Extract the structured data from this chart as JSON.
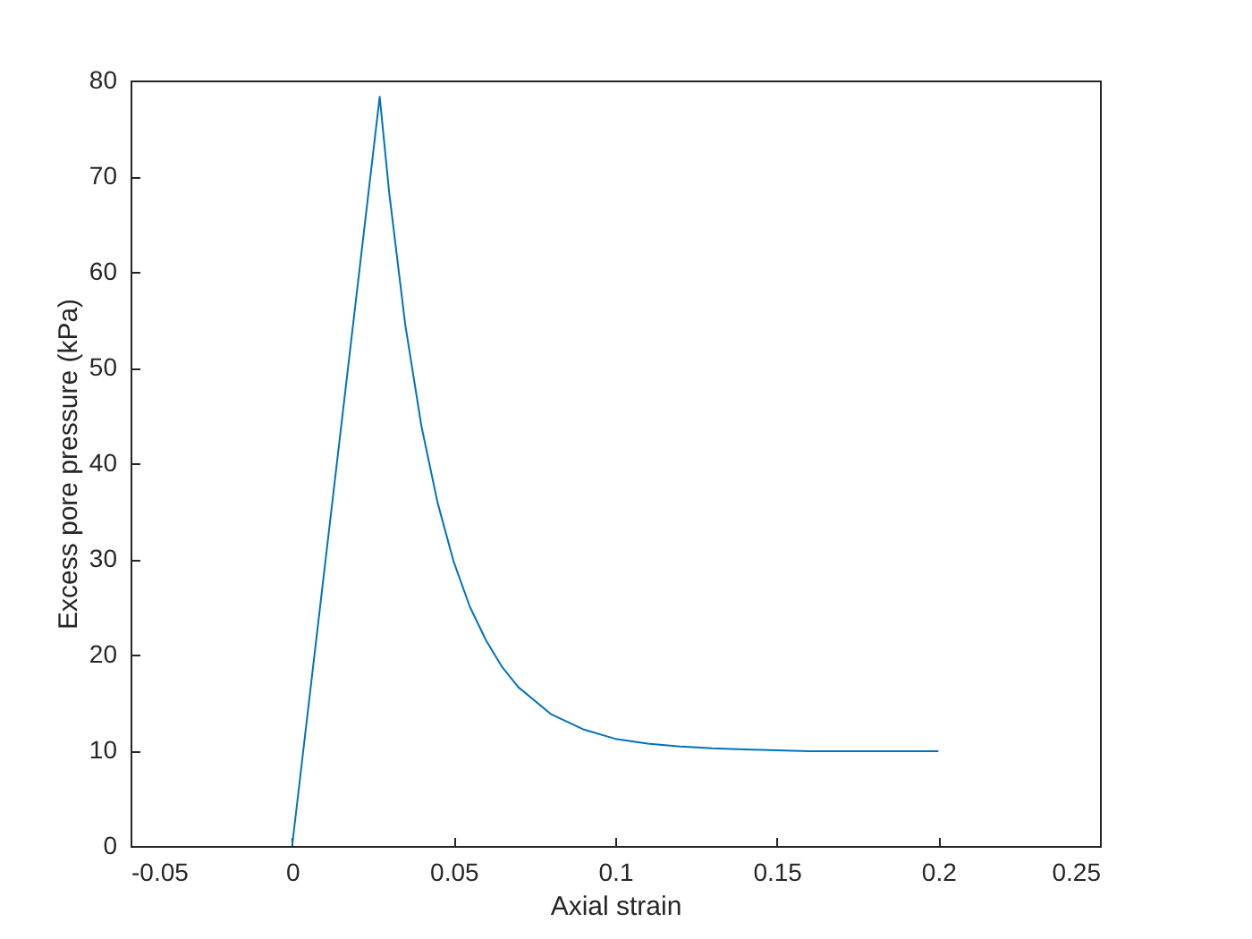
{
  "chart_data": {
    "type": "line",
    "xlabel": "Axial strain",
    "ylabel": "Excess pore pressure (kPa)",
    "x": [
      0,
      0.0271,
      0.03,
      0.035,
      0.04,
      0.045,
      0.05,
      0.055,
      0.06,
      0.065,
      0.07,
      0.08,
      0.09,
      0.1,
      0.11,
      0.12,
      0.13,
      0.14,
      0.16,
      0.2
    ],
    "series": [
      {
        "color": "#0072bd",
        "values": [
          0,
          78.3,
          68.4,
          54.5,
          43.9,
          35.9,
          29.7,
          25.0,
          21.5,
          18.7,
          16.6,
          13.8,
          12.2,
          11.2,
          10.7,
          10.4,
          10.2,
          10.1,
          9.9,
          9.9
        ]
      }
    ],
    "xlim": [
      -0.05,
      0.25
    ],
    "xticks": [
      -0.05,
      0,
      0.05,
      0.1,
      0.15,
      0.2,
      0.25
    ],
    "ylim": [
      0,
      80
    ],
    "yticks": [
      0,
      10,
      20,
      30,
      40,
      50,
      60,
      70,
      80
    ],
    "grid": false,
    "legend": false,
    "marker": "none",
    "line_style": "solid"
  }
}
